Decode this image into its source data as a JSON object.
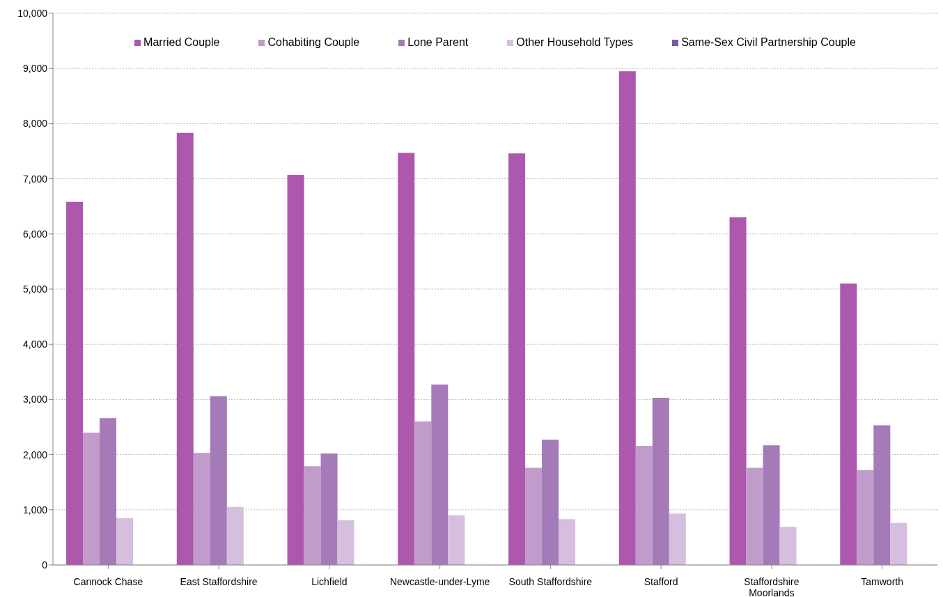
{
  "chart_data": {
    "type": "bar",
    "categories": [
      "Cannock Chase",
      "East Staffordshire",
      "Lichfield",
      "Newcastle-under-Lyme",
      "South Staffordshire",
      "Stafford",
      "Staffordshire Moorlands",
      "Tamworth"
    ],
    "series": [
      {
        "name": "Married Couple",
        "color": "#ad57ad",
        "values": [
          6580,
          7830,
          7070,
          7470,
          7460,
          8950,
          6300,
          5100
        ]
      },
      {
        "name": "Cohabiting Couple",
        "color": "#c19ccb",
        "values": [
          2400,
          2030,
          1790,
          2600,
          1760,
          2160,
          1760,
          1720
        ]
      },
      {
        "name": "Lone Parent",
        "color": "#a57ab9",
        "values": [
          2660,
          3060,
          2020,
          3270,
          2270,
          3030,
          2170,
          2530
        ]
      },
      {
        "name": "Other Household Types",
        "color": "#d6bedf",
        "values": [
          850,
          1050,
          810,
          900,
          830,
          930,
          690,
          760
        ]
      },
      {
        "name": "Same-Sex Civil Partnership Couple",
        "color": "#7b5a9c",
        "values": [
          null,
          null,
          null,
          null,
          null,
          null,
          null,
          null
        ]
      }
    ],
    "ylim": [
      0,
      10000
    ],
    "yticks": [
      {
        "value": 0,
        "label": "0"
      },
      {
        "value": 1000,
        "label": "1,000"
      },
      {
        "value": 2000,
        "label": "2,000"
      },
      {
        "value": 3000,
        "label": "3,000"
      },
      {
        "value": 4000,
        "label": "4,000"
      },
      {
        "value": 5000,
        "label": "5,000"
      },
      {
        "value": 6000,
        "label": "6,000"
      },
      {
        "value": 7000,
        "label": "7,000"
      },
      {
        "value": 8000,
        "label": "8,000"
      },
      {
        "value": 9000,
        "label": "9,000"
      },
      {
        "value": 10000,
        "label": "10,000"
      }
    ],
    "grid": "y",
    "legend": "top"
  }
}
